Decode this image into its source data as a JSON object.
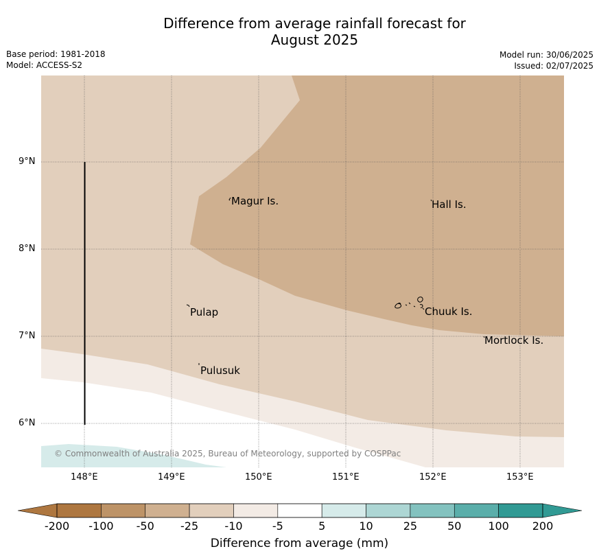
{
  "title_line1": "Difference from average rainfall forecast for",
  "title_line2": "August 2025",
  "meta_left": {
    "base_period": "Base period: 1981-2018",
    "model": "Model: ACCESS-S2"
  },
  "meta_right": {
    "model_run": "Model run: 30/06/2025",
    "issued": "Issued: 02/07/2025"
  },
  "map": {
    "longitude_labels": [
      "148°E",
      "149°E",
      "150°E",
      "151°E",
      "152°E",
      "153°E"
    ],
    "latitude_labels": [
      "9°N",
      "8°N",
      "7°N",
      "6°N"
    ],
    "places": [
      "Magur Is.",
      "Hall Is.",
      "Pulap",
      "Chuuk Is.",
      "Mortlock Is.",
      "Pulusuk"
    ],
    "copyright": "© Commonwealth of Australia 2025, Bureau of Meteorology, supported by COSPPac"
  },
  "colorbar": {
    "title": "Difference from average (mm)",
    "labels": [
      "-200",
      "-100",
      "-50",
      "-25",
      "-10",
      "-5",
      "5",
      "10",
      "25",
      "50",
      "100",
      "200"
    ],
    "colors": [
      "#ae7740",
      "#bd9367",
      "#cfb090",
      "#e2cfbc",
      "#f3ebe5",
      "#ffffff",
      "#d6ebea",
      "#add6d4",
      "#83c2bf",
      "#5aaeaa",
      "#319a94"
    ]
  }
}
